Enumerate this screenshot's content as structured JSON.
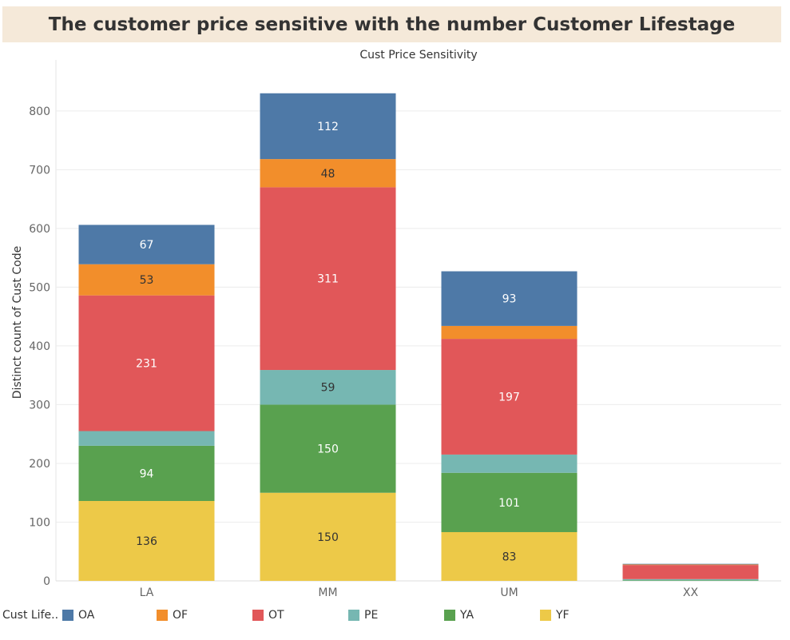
{
  "title": "The customer price sensitive with the number Customer Lifestage",
  "chart_data": {
    "type": "bar",
    "stacked": true,
    "top_axis_label": "Cust Price Sensitivity",
    "ylabel": "Distinct count of Cust Code",
    "ylim": [
      0,
      880
    ],
    "yticks": [
      0,
      100,
      200,
      300,
      400,
      500,
      600,
      700,
      800
    ],
    "grid": true,
    "categories": [
      "LA",
      "MM",
      "UM",
      "XX"
    ],
    "series": [
      {
        "name": "YF",
        "color": "#edc948",
        "values": [
          136,
          150,
          83,
          0
        ],
        "labels": [
          "136",
          "150",
          "83",
          ""
        ],
        "label_color": "#333333"
      },
      {
        "name": "YA",
        "color": "#59a14f",
        "values": [
          94,
          150,
          101,
          1
        ],
        "labels": [
          "94",
          "150",
          "101",
          ""
        ],
        "label_color": "#ffffff"
      },
      {
        "name": "PE",
        "color": "#76b7b2",
        "values": [
          25,
          59,
          31,
          2
        ],
        "labels": [
          "",
          "59",
          "",
          ""
        ],
        "label_color": "#333333"
      },
      {
        "name": "OT",
        "color": "#e15759",
        "values": [
          231,
          311,
          197,
          24
        ],
        "labels": [
          "231",
          "311",
          "197",
          ""
        ],
        "label_color": "#ffffff"
      },
      {
        "name": "OF",
        "color": "#f28e2b",
        "values": [
          53,
          48,
          22,
          1
        ],
        "labels": [
          "53",
          "48",
          "",
          ""
        ],
        "label_color": "#333333"
      },
      {
        "name": "OA",
        "color": "#4e79a7",
        "values": [
          67,
          112,
          93,
          1
        ],
        "labels": [
          "67",
          "112",
          "93",
          ""
        ],
        "label_color": "#ffffff"
      }
    ]
  },
  "legend": {
    "title": "Cust Life..",
    "items": [
      {
        "label": "OA",
        "color": "#4e79a7"
      },
      {
        "label": "OF",
        "color": "#f28e2b"
      },
      {
        "label": "OT",
        "color": "#e15759"
      },
      {
        "label": "PE",
        "color": "#76b7b2"
      },
      {
        "label": "YA",
        "color": "#59a14f"
      },
      {
        "label": "YF",
        "color": "#edc948"
      }
    ]
  }
}
